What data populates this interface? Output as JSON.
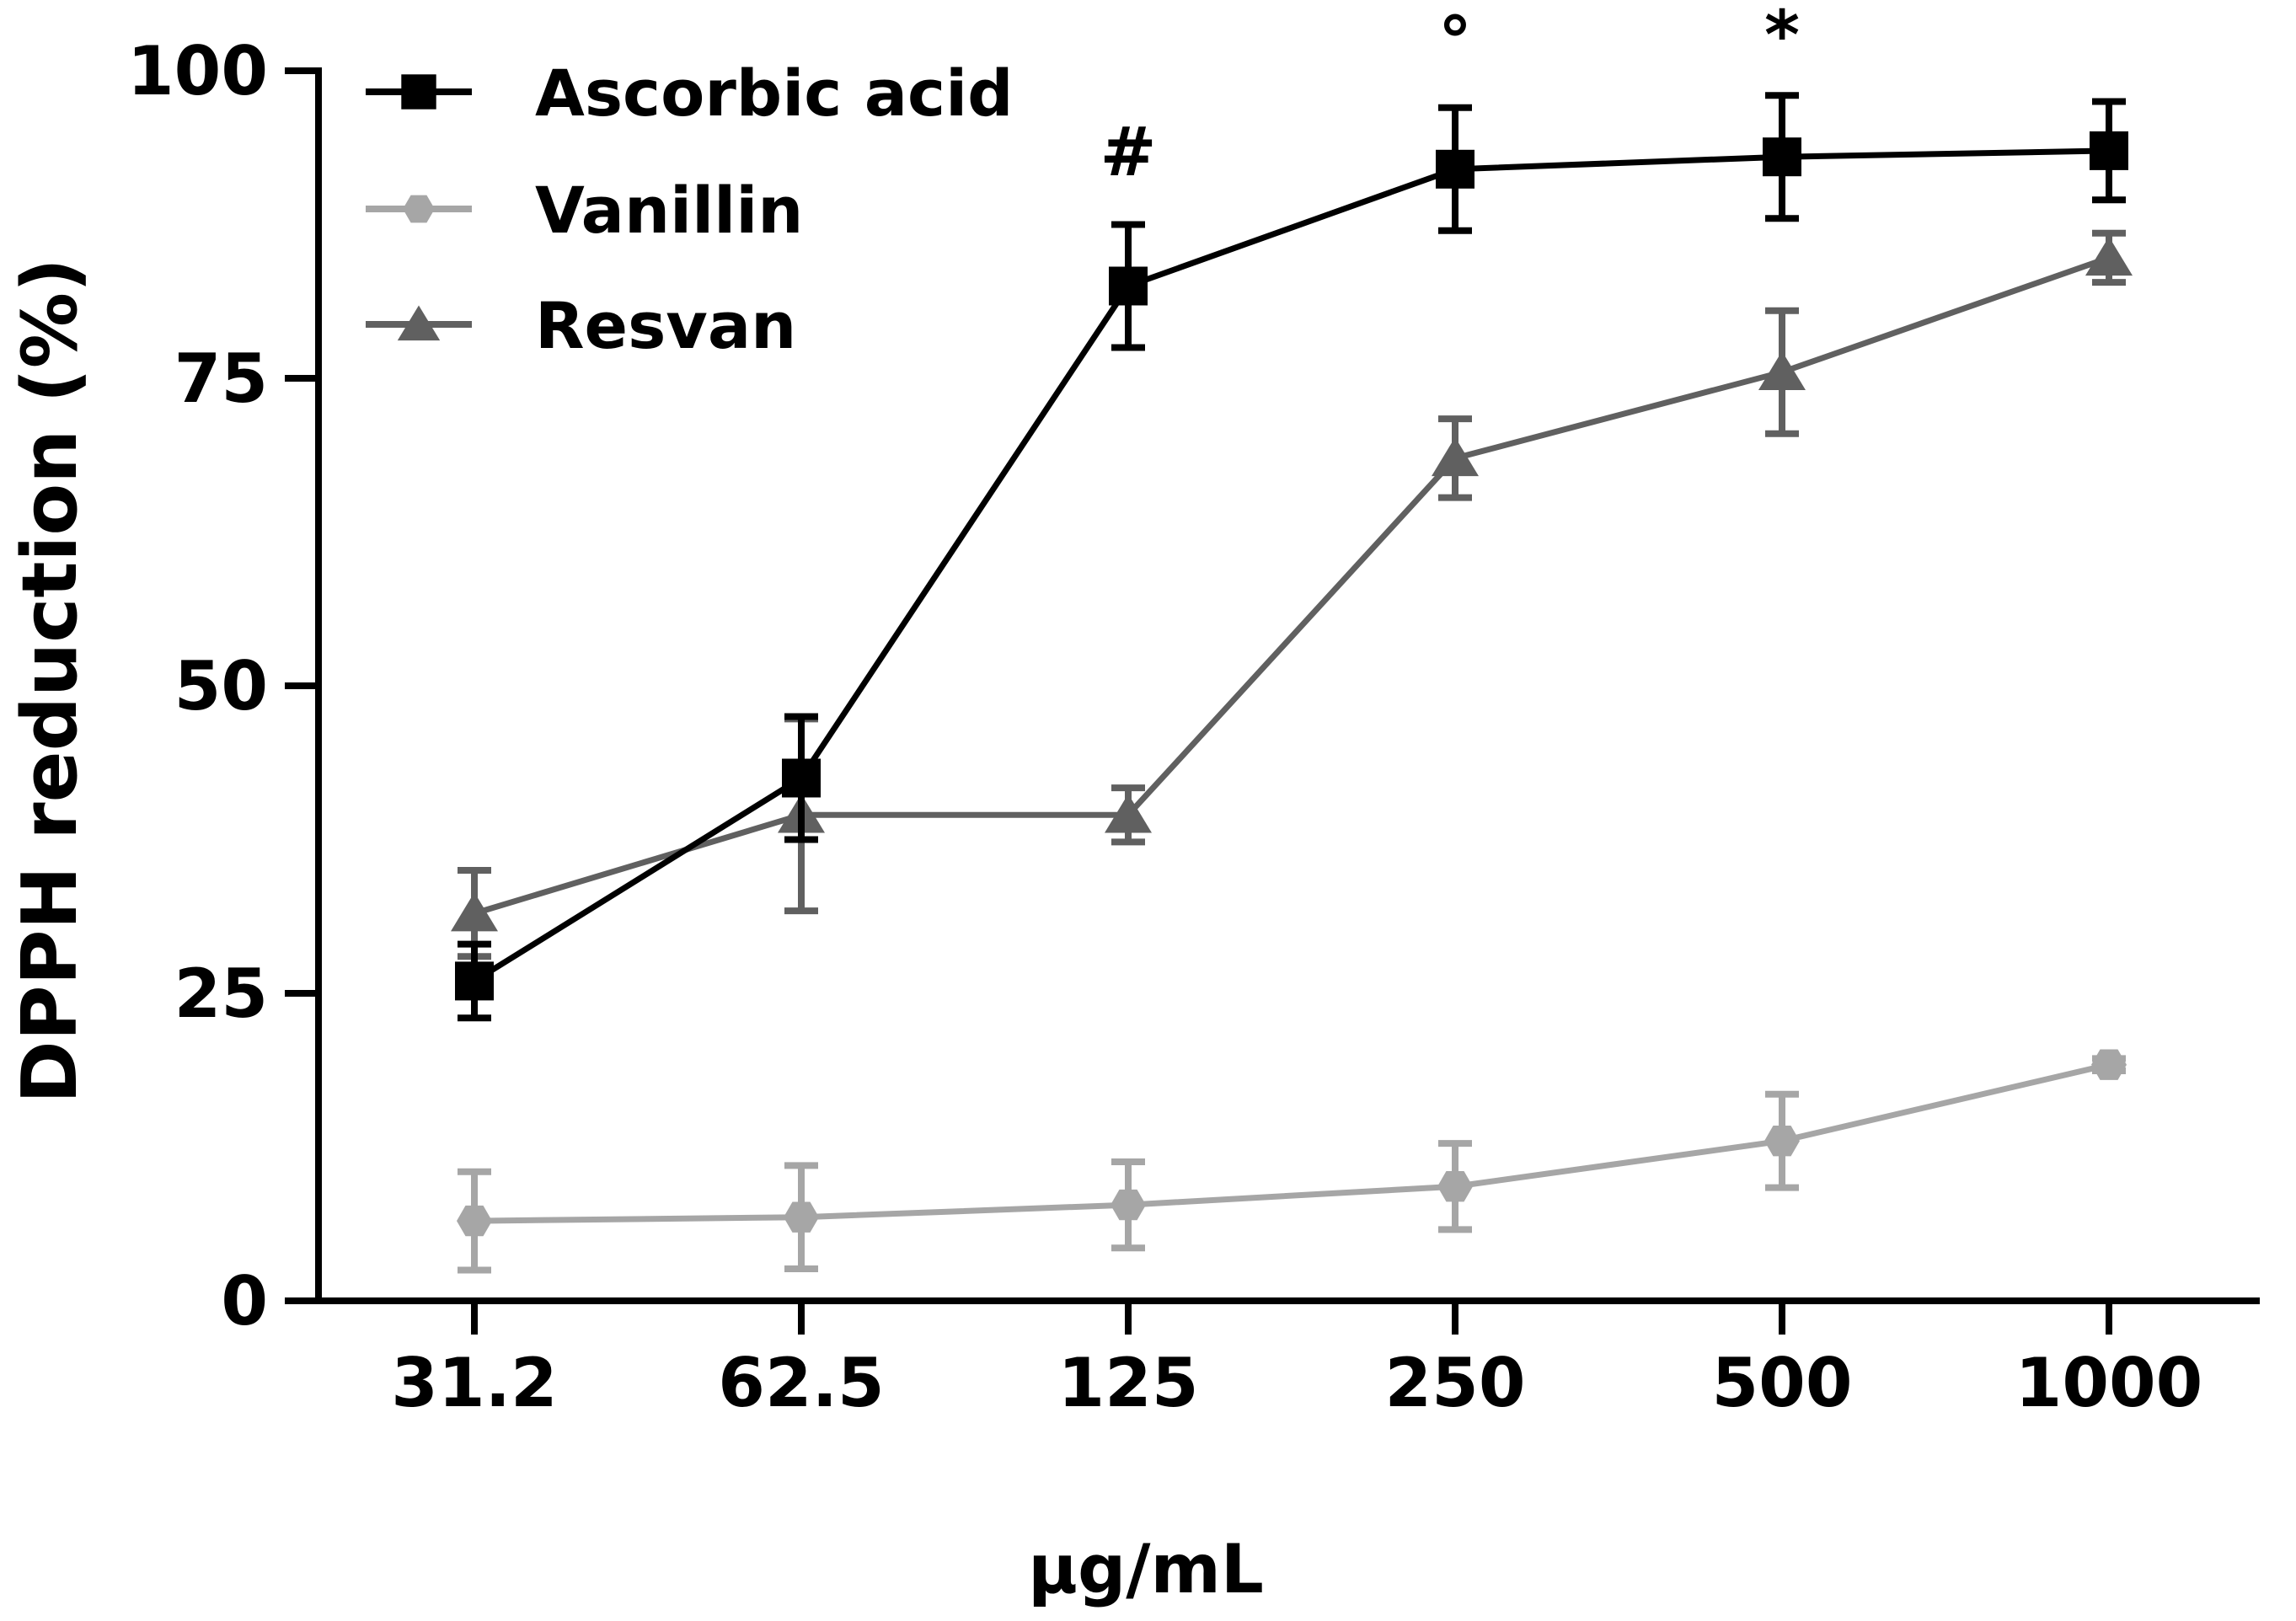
{
  "chart_data": {
    "type": "line",
    "title": "",
    "xlabel": "µg/mL",
    "ylabel": "DPPH reduction (%)",
    "x_scale": "categorical",
    "categories": [
      "31.2",
      "62.5",
      "125",
      "250",
      "500",
      "1000"
    ],
    "yticks": [
      "0",
      "25",
      "50",
      "75",
      "100"
    ],
    "ylim": [
      0,
      100
    ],
    "legend_position": "top-left",
    "series": [
      {
        "name": "Ascorbic acid",
        "color": "#000000",
        "marker": "square",
        "values": [
          26,
          42.5,
          82.5,
          92,
          93,
          93.5
        ],
        "errors": [
          3,
          5,
          5,
          5,
          5,
          4
        ]
      },
      {
        "name": "Vanillin",
        "color": "#a6a6a6",
        "marker": "hexagon",
        "values": [
          6.5,
          6.8,
          7.8,
          9.3,
          13,
          19.2
        ],
        "errors": [
          4,
          4.2,
          3.5,
          3.5,
          3.8,
          0.5
        ]
      },
      {
        "name": "Resvan",
        "color": "#606060",
        "marker": "triangle",
        "values": [
          31.5,
          39.5,
          39.5,
          68.5,
          75.5,
          84.8
        ],
        "errors": [
          3.5,
          7.8,
          2.2,
          3.2,
          5,
          2
        ]
      }
    ],
    "annotations": [
      {
        "text": "#",
        "category": "125",
        "value": 91.5
      },
      {
        "text": "°",
        "category": "250",
        "value": 100.5
      },
      {
        "text": "*",
        "category": "500",
        "value": 101
      }
    ]
  }
}
